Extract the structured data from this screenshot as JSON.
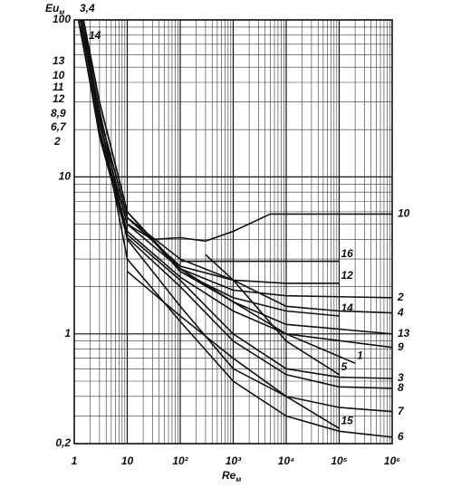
{
  "chart_data": {
    "type": "line",
    "y_label": "Eu",
    "y_label_sub": "м",
    "x_label": "Re",
    "x_label_sub": "м",
    "left_labels": [
      "3,4",
      "14",
      "13",
      "10",
      "11",
      "12",
      "8,9",
      "6,7",
      "2"
    ],
    "xscale": "log",
    "yscale": "log",
    "grid": true,
    "minor_grid": true,
    "color": "#111111",
    "xlim": [
      1,
      1000000
    ],
    "ylim": [
      0.2,
      100
    ],
    "xticks": [
      1,
      10,
      {
        "value": 100,
        "label": "10²"
      },
      {
        "value": 1000,
        "label": "10³"
      },
      {
        "value": 10000,
        "label": "10⁴"
      },
      {
        "value": 100000,
        "label": "10⁵"
      },
      {
        "value": 1000000,
        "label": "10⁶"
      }
    ],
    "yticks": [
      {
        "value": 0.2,
        "label": "0,2"
      },
      1,
      10,
      100
    ],
    "series": [
      {
        "name": "2",
        "x": [
          1.5,
          3,
          10,
          100,
          1000,
          10000,
          1000000
        ],
        "values": [
          100,
          30,
          6,
          2.6,
          1.9,
          1.75,
          1.7
        ]
      },
      {
        "name": "4",
        "x": [
          1.4,
          3,
          10,
          100,
          1000,
          10000,
          100000,
          1000000
        ],
        "values": [
          100,
          25,
          5.5,
          3,
          2.2,
          1.5,
          1.4,
          1.36
        ]
      },
      {
        "name": "13",
        "x": [
          1.3,
          3,
          10,
          100,
          1000,
          10000,
          1000000
        ],
        "values": [
          100,
          22,
          5,
          2.6,
          1.6,
          1.15,
          1.0
        ]
      },
      {
        "name": "9",
        "x": [
          1.2,
          3,
          10,
          100,
          1000,
          10000,
          1000000
        ],
        "values": [
          100,
          20,
          4.5,
          2.3,
          1.4,
          1.0,
          0.82
        ]
      },
      {
        "name": "3",
        "x": [
          1.2,
          3,
          10,
          100,
          1000,
          10000,
          100000,
          1000000
        ],
        "values": [
          100,
          19,
          4.3,
          2.2,
          1.0,
          0.6,
          0.53,
          0.52
        ]
      },
      {
        "name": "8",
        "x": [
          1.3,
          3,
          10,
          100,
          1000,
          10000,
          100000,
          1000000
        ],
        "values": [
          90,
          18,
          4.1,
          2,
          0.9,
          0.55,
          0.46,
          0.45
        ]
      },
      {
        "name": "7",
        "x": [
          1.5,
          10,
          100,
          1000,
          10000,
          100000,
          1000000
        ],
        "values": [
          80,
          4,
          1.5,
          0.6,
          0.4,
          0.34,
          0.32
        ]
      },
      {
        "name": "6",
        "x": [
          2,
          10,
          100,
          1000,
          10000,
          100000,
          1000000
        ],
        "values": [
          50,
          3,
          1.2,
          0.5,
          0.3,
          0.24,
          0.22
        ]
      },
      {
        "name": "10",
        "x": [
          1.3,
          3,
          10,
          30,
          100,
          300,
          1000,
          5000,
          1000000
        ],
        "values": [
          100,
          22,
          5,
          4,
          4.1,
          3.9,
          4.5,
          5.8,
          5.8
        ]
      },
      {
        "name": "16",
        "x": [
          100,
          100000
        ],
        "values": [
          2.9,
          2.9
        ]
      },
      {
        "name": "12",
        "x": [
          1.3,
          3,
          10,
          100,
          1000,
          10000,
          100000
        ],
        "values": [
          100,
          25,
          5.5,
          2.7,
          2.2,
          2.1,
          2.1
        ]
      },
      {
        "name": "14",
        "x": [
          1.4,
          3,
          10,
          100,
          1000,
          10000,
          100000
        ],
        "values": [
          100,
          30,
          6,
          2.5,
          1.7,
          1.4,
          1.3
        ]
      },
      {
        "name": "1",
        "x": [
          100,
          1000,
          10000,
          200000
        ],
        "values": [
          2.5,
          1.6,
          1.0,
          0.65
        ]
      },
      {
        "name": "5",
        "x": [
          300,
          1000,
          10000,
          100000
        ],
        "values": [
          3.2,
          2.2,
          0.9,
          0.55
        ]
      },
      {
        "name": "15",
        "x": [
          10,
          100,
          1000,
          10000,
          100000
        ],
        "values": [
          2.5,
          1.3,
          0.7,
          0.4,
          0.25
        ]
      }
    ]
  }
}
